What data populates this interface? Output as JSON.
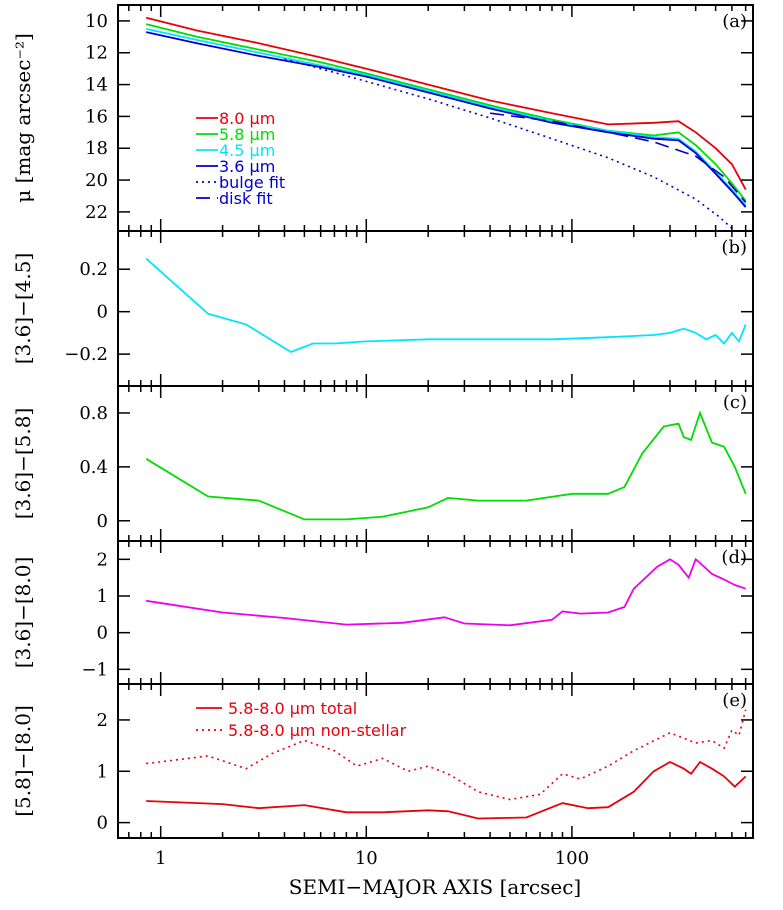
{
  "figure": {
    "xlabel": "SEMI−MAJOR AXIS [arcsec]",
    "x_ticks": [
      1,
      10,
      100
    ],
    "x_tick_labels": [
      "1",
      "10",
      "100"
    ],
    "xlim": [
      0.62,
      760
    ]
  },
  "colors": {
    "red": "#e8000b",
    "green": "#00dd00",
    "cyan": "#00e5ff",
    "blue": "#0000cc",
    "magenta": "#ee00ee"
  },
  "chart_data": [
    {
      "type": "line",
      "panel_label": "(a)",
      "ylabel": "μ [mag arcsec⁻²]",
      "ylim": [
        9.0,
        23.2
      ],
      "y_inverted": true,
      "y_ticks": [
        10,
        12,
        14,
        16,
        18,
        20,
        22
      ],
      "y_tick_labels": [
        "10",
        "12",
        "14",
        "16",
        "18",
        "20",
        "22"
      ],
      "series": [
        {
          "name": "8.0 μm",
          "legend": "8.0 μm",
          "color": "red",
          "dash": "solid",
          "x": [
            0.85,
            1.5,
            3,
            6,
            10,
            20,
            40,
            80,
            150,
            250,
            330,
            400,
            500,
            600,
            700
          ],
          "y": [
            9.8,
            10.6,
            11.4,
            12.3,
            13.0,
            14.0,
            15.0,
            15.8,
            16.5,
            16.4,
            16.3,
            17.0,
            18.0,
            19.0,
            20.6
          ]
        },
        {
          "name": "5.8 μm",
          "legend": "5.8 μm",
          "color": "green",
          "dash": "solid",
          "x": [
            0.85,
            1.5,
            3,
            6,
            10,
            20,
            40,
            80,
            150,
            250,
            330,
            400,
            500,
            600,
            700
          ],
          "y": [
            10.2,
            11.0,
            11.8,
            12.6,
            13.3,
            14.3,
            15.3,
            16.2,
            16.9,
            17.2,
            17.0,
            17.8,
            19.0,
            20.2,
            21.3
          ]
        },
        {
          "name": "4.5 μm",
          "legend": "4.5 μm",
          "color": "cyan",
          "dash": "solid",
          "x": [
            0.85,
            1.5,
            3,
            6,
            10,
            20,
            40,
            80,
            150,
            250,
            330,
            400,
            500,
            600,
            700
          ],
          "y": [
            10.5,
            11.2,
            12.0,
            12.8,
            13.4,
            14.4,
            15.4,
            16.3,
            16.9,
            17.3,
            17.4,
            18.2,
            19.5,
            20.6,
            21.6
          ]
        },
        {
          "name": "3.6 μm",
          "legend": "3.6 μm",
          "color": "blue",
          "dash": "solid",
          "x": [
            0.85,
            1.5,
            3,
            6,
            10,
            20,
            40,
            80,
            150,
            250,
            330,
            400,
            500,
            600,
            700
          ],
          "y": [
            10.7,
            11.4,
            12.2,
            12.9,
            13.5,
            14.5,
            15.5,
            16.4,
            17.0,
            17.4,
            17.5,
            18.3,
            19.6,
            20.7,
            21.7
          ]
        },
        {
          "name": "bulge fit",
          "legend": "bulge fit",
          "color": "blue",
          "dash": "dotted",
          "x": [
            4,
            6,
            10,
            20,
            40,
            80,
            150,
            250,
            400,
            520,
            620
          ],
          "y": [
            12.4,
            13.0,
            13.8,
            14.9,
            16.1,
            17.4,
            18.6,
            19.8,
            21.2,
            22.3,
            23.2
          ]
        },
        {
          "name": "disk fit",
          "legend": "disk fit",
          "color": "blue",
          "dash": "dashed",
          "x": [
            40,
            80,
            150,
            250,
            400,
            550,
            700
          ],
          "y": [
            15.8,
            16.3,
            17.0,
            17.6,
            18.5,
            19.8,
            21.4
          ]
        }
      ]
    },
    {
      "type": "line",
      "panel_label": "(b)",
      "ylabel": "[3.6]−[4.5]",
      "ylim": [
        -0.35,
        0.38
      ],
      "y_ticks": [
        0.2,
        0,
        -0.2
      ],
      "y_tick_labels": [
        "0.2",
        "0",
        "−0.2"
      ],
      "series": [
        {
          "color": "cyan",
          "dash": "solid",
          "x": [
            0.85,
            1.7,
            2.6,
            4.3,
            5.5,
            7,
            10,
            20,
            40,
            80,
            150,
            250,
            300,
            350,
            400,
            450,
            500,
            550,
            600,
            650,
            700
          ],
          "y": [
            0.25,
            -0.01,
            -0.06,
            -0.19,
            -0.15,
            -0.15,
            -0.14,
            -0.13,
            -0.13,
            -0.13,
            -0.12,
            -0.11,
            -0.1,
            -0.08,
            -0.1,
            -0.13,
            -0.11,
            -0.15,
            -0.1,
            -0.14,
            -0.06
          ]
        }
      ]
    },
    {
      "type": "line",
      "panel_label": "(c)",
      "ylabel": "[3.6]−[5.8]",
      "ylim": [
        -0.15,
        1.0
      ],
      "y_ticks": [
        0.8,
        0.4,
        0
      ],
      "y_tick_labels": [
        "0.8",
        "0.4",
        "0"
      ],
      "series": [
        {
          "color": "green",
          "dash": "solid",
          "x": [
            0.85,
            1.7,
            3,
            5,
            8,
            12,
            20,
            25,
            35,
            60,
            100,
            150,
            180,
            220,
            280,
            330,
            350,
            380,
            420,
            480,
            550,
            620,
            700
          ],
          "y": [
            0.46,
            0.18,
            0.15,
            0.01,
            0.01,
            0.03,
            0.1,
            0.17,
            0.15,
            0.15,
            0.2,
            0.2,
            0.25,
            0.5,
            0.7,
            0.72,
            0.62,
            0.6,
            0.8,
            0.58,
            0.55,
            0.4,
            0.2
          ]
        }
      ]
    },
    {
      "type": "line",
      "panel_label": "(d)",
      "ylabel": "[3.6]−[8.0]",
      "ylim": [
        -1.4,
        2.5
      ],
      "y_ticks": [
        2,
        1,
        0,
        -1
      ],
      "y_tick_labels": [
        "2",
        "1",
        "0",
        "−1"
      ],
      "series": [
        {
          "color": "magenta",
          "dash": "solid",
          "x": [
            0.85,
            2,
            4,
            8,
            15,
            24,
            30,
            50,
            80,
            90,
            110,
            150,
            180,
            200,
            260,
            300,
            330,
            370,
            400,
            420,
            480,
            550,
            620,
            700
          ],
          "y": [
            0.87,
            0.55,
            0.4,
            0.22,
            0.27,
            0.42,
            0.25,
            0.2,
            0.35,
            0.58,
            0.52,
            0.55,
            0.7,
            1.2,
            1.8,
            2.0,
            1.85,
            1.5,
            2.0,
            1.9,
            1.6,
            1.45,
            1.3,
            1.2
          ]
        }
      ]
    },
    {
      "type": "line",
      "panel_label": "(e)",
      "ylabel": "[5.8]−[8.0]",
      "ylim": [
        -0.3,
        2.7
      ],
      "y_ticks": [
        2,
        1,
        0
      ],
      "y_tick_labels": [
        "2",
        "1",
        "0"
      ],
      "series": [
        {
          "name": "5.8-8.0 μm total",
          "legend": "5.8-8.0 μm total",
          "color": "red",
          "dash": "solid",
          "x": [
            0.85,
            2,
            3,
            5,
            8,
            12,
            20,
            25,
            35,
            60,
            90,
            120,
            150,
            200,
            250,
            300,
            350,
            380,
            420,
            480,
            550,
            620,
            700
          ],
          "y": [
            0.42,
            0.36,
            0.28,
            0.34,
            0.2,
            0.2,
            0.24,
            0.22,
            0.08,
            0.1,
            0.38,
            0.28,
            0.3,
            0.6,
            1.0,
            1.18,
            1.05,
            0.95,
            1.18,
            1.05,
            0.9,
            0.7,
            0.9
          ]
        },
        {
          "name": "5.8-8.0 μm non-stellar",
          "legend": "5.8-8.0 μm non-stellar",
          "color": "red",
          "dash": "dotted",
          "x": [
            0.85,
            1.7,
            2.6,
            3.5,
            5,
            7,
            9,
            12,
            16,
            20,
            25,
            35,
            50,
            70,
            90,
            110,
            150,
            200,
            300,
            400,
            480,
            550,
            600,
            650,
            700
          ],
          "y": [
            1.15,
            1.3,
            1.05,
            1.35,
            1.6,
            1.4,
            1.1,
            1.25,
            1.0,
            1.1,
            0.95,
            0.6,
            0.45,
            0.55,
            0.95,
            0.85,
            1.1,
            1.4,
            1.75,
            1.55,
            1.6,
            1.45,
            1.8,
            1.7,
            2.2
          ]
        }
      ]
    }
  ]
}
